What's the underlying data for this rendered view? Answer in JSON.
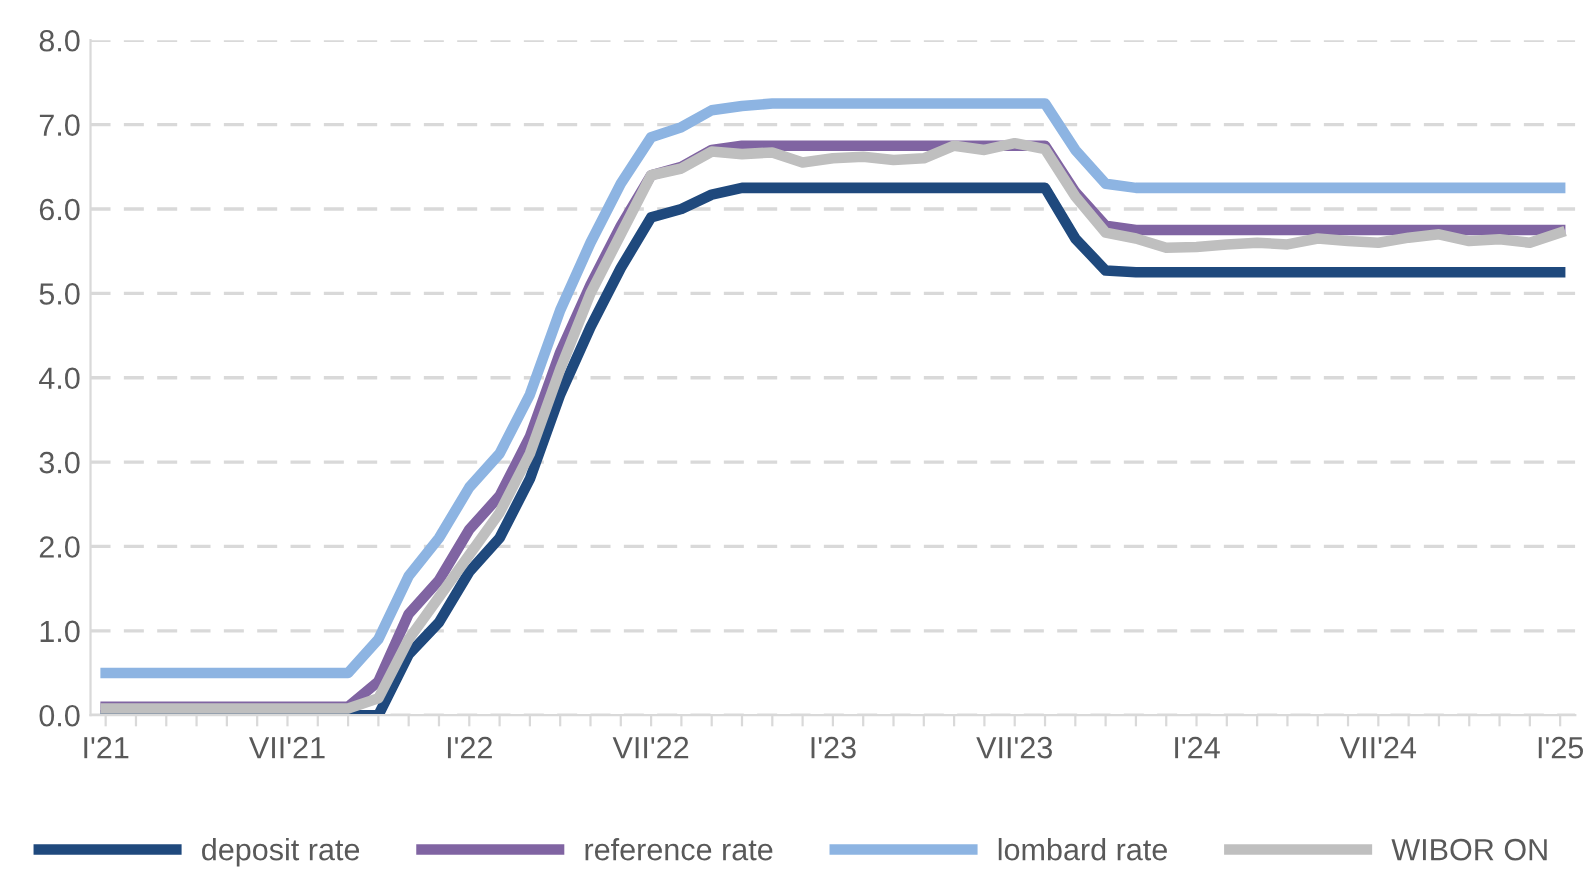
{
  "chart_data": {
    "type": "line",
    "categories": [
      "I'21",
      null,
      null,
      null,
      null,
      null,
      "VII'21",
      null,
      null,
      null,
      null,
      null,
      "I'22",
      null,
      null,
      null,
      null,
      null,
      "VII'22",
      null,
      null,
      null,
      null,
      null,
      "I'23",
      null,
      null,
      null,
      null,
      null,
      "VII'23",
      null,
      null,
      null,
      null,
      null,
      "I'24",
      null,
      null,
      null,
      null,
      null,
      "VII'24",
      null,
      null,
      null,
      null,
      null,
      "I'25"
    ],
    "series": [
      {
        "name": "deposit rate",
        "color": "#1f497d",
        "values": [
          0,
          0,
          0,
          0,
          0,
          0,
          0,
          0,
          0,
          0,
          0.72,
          1.1,
          1.7,
          2.1,
          2.8,
          3.8,
          4.6,
          5.3,
          5.9,
          6.0,
          6.17,
          6.25,
          6.25,
          6.25,
          6.25,
          6.25,
          6.25,
          6.25,
          6.25,
          6.25,
          6.25,
          6.25,
          5.65,
          5.27,
          5.25,
          5.25,
          5.25,
          5.25,
          5.25,
          5.25,
          5.25,
          5.25,
          5.25,
          5.25,
          5.25,
          5.25,
          5.25,
          5.25,
          5.25
        ]
      },
      {
        "name": "reference rate",
        "color": "#8064a2",
        "values": [
          0.1,
          0.1,
          0.1,
          0.1,
          0.1,
          0.1,
          0.1,
          0.1,
          0.1,
          0.4,
          1.2,
          1.6,
          2.2,
          2.6,
          3.3,
          4.3,
          5.1,
          5.8,
          6.4,
          6.5,
          6.7,
          6.75,
          6.75,
          6.75,
          6.75,
          6.75,
          6.75,
          6.75,
          6.75,
          6.75,
          6.75,
          6.75,
          6.2,
          5.8,
          5.75,
          5.75,
          5.75,
          5.75,
          5.75,
          5.75,
          5.75,
          5.75,
          5.75,
          5.75,
          5.75,
          5.75,
          5.75,
          5.75,
          5.75
        ]
      },
      {
        "name": "lombard rate",
        "color": "#8db4e2",
        "values": [
          0.5,
          0.5,
          0.5,
          0.5,
          0.5,
          0.5,
          0.5,
          0.5,
          0.5,
          0.9,
          1.65,
          2.1,
          2.7,
          3.1,
          3.8,
          4.8,
          5.6,
          6.3,
          6.85,
          6.97,
          7.17,
          7.22,
          7.25,
          7.25,
          7.25,
          7.25,
          7.25,
          7.25,
          7.25,
          7.25,
          7.25,
          7.25,
          6.7,
          6.3,
          6.25,
          6.25,
          6.25,
          6.25,
          6.25,
          6.25,
          6.25,
          6.25,
          6.25,
          6.25,
          6.25,
          6.25,
          6.25,
          6.25,
          6.25
        ]
      },
      {
        "name": "WIBOR ON",
        "color": "#bfbfbf",
        "values": [
          0.08,
          0.08,
          0.08,
          0.08,
          0.08,
          0.08,
          0.08,
          0.08,
          0.08,
          0.2,
          0.9,
          1.4,
          1.9,
          2.4,
          3.1,
          4.1,
          5.0,
          5.7,
          6.4,
          6.48,
          6.68,
          6.65,
          6.67,
          6.55,
          6.6,
          6.62,
          6.58,
          6.6,
          6.75,
          6.7,
          6.78,
          6.71,
          6.15,
          5.72,
          5.65,
          5.54,
          5.55,
          5.58,
          5.6,
          5.58,
          5.65,
          5.62,
          5.6,
          5.66,
          5.7,
          5.62,
          5.64,
          5.6,
          5.72
        ]
      }
    ],
    "ylim": [
      0,
      8
    ],
    "yticks": [
      {
        "value": 0,
        "label": "0.0"
      },
      {
        "value": 1,
        "label": "1.0"
      },
      {
        "value": 2,
        "label": "2.0"
      },
      {
        "value": 3,
        "label": "3.0"
      },
      {
        "value": 4,
        "label": "4.0"
      },
      {
        "value": 5,
        "label": "5.0"
      },
      {
        "value": 6,
        "label": "6.0"
      },
      {
        "value": 7,
        "label": "7.0"
      },
      {
        "value": 8,
        "label": "8.0"
      }
    ],
    "grid": "y",
    "legend": "bottom",
    "marker": "none",
    "line_style": "solid"
  }
}
